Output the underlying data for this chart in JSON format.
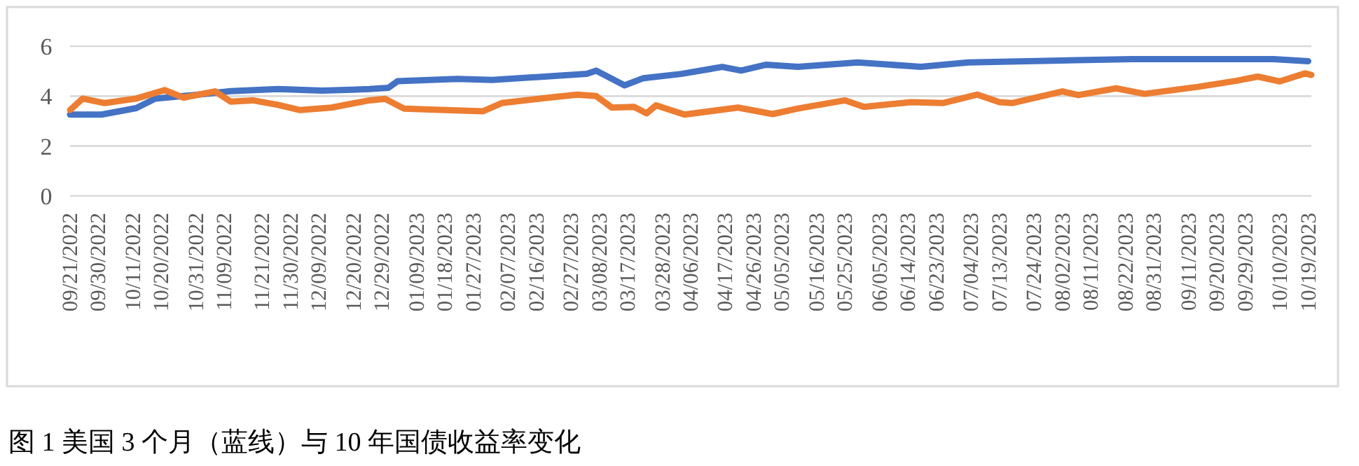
{
  "chart_data": {
    "type": "line",
    "grid": "y",
    "xlim": [
      "2022-09-21",
      "2023-10-20"
    ],
    "ylim": [
      0,
      6
    ],
    "yticks": [
      0,
      2,
      4,
      6
    ],
    "xticks": [
      {
        "value": "2022-09-21",
        "label": "09/21/2022"
      },
      {
        "value": "2022-09-30",
        "label": "09/30/2022"
      },
      {
        "value": "2022-10-11",
        "label": "10/11/2022"
      },
      {
        "value": "2022-10-20",
        "label": "10/20/2022"
      },
      {
        "value": "2022-10-31",
        "label": "10/31/2022"
      },
      {
        "value": "2022-11-09",
        "label": "11/09/2022"
      },
      {
        "value": "2022-11-21",
        "label": "11/21/2022"
      },
      {
        "value": "2022-11-30",
        "label": "11/30/2022"
      },
      {
        "value": "2022-12-09",
        "label": "12/09/2022"
      },
      {
        "value": "2022-12-20",
        "label": "12/20/2022"
      },
      {
        "value": "2022-12-29",
        "label": "12/29/2022"
      },
      {
        "value": "2023-01-09",
        "label": "01/09/2023"
      },
      {
        "value": "2023-01-18",
        "label": "01/18/2023"
      },
      {
        "value": "2023-01-27",
        "label": "01/27/2023"
      },
      {
        "value": "2023-02-07",
        "label": "02/07/2023"
      },
      {
        "value": "2023-02-16",
        "label": "02/16/2023"
      },
      {
        "value": "2023-02-27",
        "label": "02/27/2023"
      },
      {
        "value": "2023-03-08",
        "label": "03/08/2023"
      },
      {
        "value": "2023-03-17",
        "label": "03/17/2023"
      },
      {
        "value": "2023-03-28",
        "label": "03/28/2023"
      },
      {
        "value": "2023-04-06",
        "label": "04/06/2023"
      },
      {
        "value": "2023-04-17",
        "label": "04/17/2023"
      },
      {
        "value": "2023-04-26",
        "label": "04/26/2023"
      },
      {
        "value": "2023-05-05",
        "label": "05/05/2023"
      },
      {
        "value": "2023-05-16",
        "label": "05/16/2023"
      },
      {
        "value": "2023-05-25",
        "label": "05/25/2023"
      },
      {
        "value": "2023-06-05",
        "label": "06/05/2023"
      },
      {
        "value": "2023-06-14",
        "label": "06/14/2023"
      },
      {
        "value": "2023-06-23",
        "label": "06/23/2023"
      },
      {
        "value": "2023-07-04",
        "label": "07/04/2023"
      },
      {
        "value": "2023-07-13",
        "label": "07/13/2023"
      },
      {
        "value": "2023-07-24",
        "label": "07/24/2023"
      },
      {
        "value": "2023-08-02",
        "label": "08/02/2023"
      },
      {
        "value": "2023-08-11",
        "label": "08/11/2023"
      },
      {
        "value": "2023-08-22",
        "label": "08/22/2023"
      },
      {
        "value": "2023-08-31",
        "label": "08/31/2023"
      },
      {
        "value": "2023-09-11",
        "label": "09/11/2023"
      },
      {
        "value": "2023-09-20",
        "label": "09/20/2023"
      },
      {
        "value": "2023-09-29",
        "label": "09/29/2023"
      },
      {
        "value": "2023-10-10",
        "label": "10/10/2023"
      },
      {
        "value": "2023-10-19",
        "label": "10/19/2023"
      }
    ],
    "series": [
      {
        "color": "#4472c4",
        "x": [
          "2022-09-21",
          "2022-10-01",
          "2022-10-12",
          "2022-10-18",
          "2022-10-30",
          "2022-11-11",
          "2022-11-26",
          "2022-12-10",
          "2022-12-25",
          "2022-12-31",
          "2023-01-03",
          "2023-01-22",
          "2023-02-02",
          "2023-03-04",
          "2023-03-07",
          "2023-03-16",
          "2023-03-22",
          "2023-04-03",
          "2023-04-16",
          "2023-04-22",
          "2023-04-30",
          "2023-05-10",
          "2023-05-29",
          "2023-06-15",
          "2023-06-18",
          "2023-07-03",
          "2023-08-24",
          "2023-10-08",
          "2023-10-19"
        ],
        "values": [
          3.26,
          3.26,
          3.52,
          3.9,
          4.04,
          4.2,
          4.28,
          4.22,
          4.28,
          4.33,
          4.6,
          4.69,
          4.65,
          4.89,
          5.02,
          4.43,
          4.72,
          4.89,
          5.17,
          5.02,
          5.26,
          5.17,
          5.35,
          5.2,
          5.17,
          5.35,
          5.48,
          5.48,
          5.4
        ]
      },
      {
        "color": "#ed7d31",
        "x": [
          "2022-09-21",
          "2022-09-25",
          "2022-10-02",
          "2022-10-12",
          "2022-10-21",
          "2022-10-27",
          "2022-11-06",
          "2022-11-11",
          "2022-11-18",
          "2022-11-26",
          "2022-12-03",
          "2022-12-13",
          "2022-12-25",
          "2022-12-30",
          "2023-01-05",
          "2023-01-18",
          "2023-01-30",
          "2023-02-05",
          "2023-02-20",
          "2023-03-01",
          "2023-03-07",
          "2023-03-12",
          "2023-03-19",
          "2023-03-23",
          "2023-03-26",
          "2023-04-04",
          "2023-04-21",
          "2023-05-02",
          "2023-05-10",
          "2023-05-25",
          "2023-05-31",
          "2023-06-15",
          "2023-06-25",
          "2023-07-06",
          "2023-07-13",
          "2023-07-17",
          "2023-08-02",
          "2023-08-07",
          "2023-08-19",
          "2023-08-28",
          "2023-09-14",
          "2023-09-26",
          "2023-10-03",
          "2023-10-10",
          "2023-10-18",
          "2023-10-20"
        ],
        "values": [
          3.44,
          3.9,
          3.72,
          3.9,
          4.24,
          3.94,
          4.19,
          3.78,
          3.83,
          3.65,
          3.44,
          3.54,
          3.83,
          3.89,
          3.5,
          3.44,
          3.39,
          3.72,
          3.94,
          4.06,
          4.0,
          3.54,
          3.57,
          3.31,
          3.63,
          3.26,
          3.54,
          3.28,
          3.5,
          3.83,
          3.57,
          3.76,
          3.72,
          4.06,
          3.76,
          3.72,
          4.19,
          4.04,
          4.31,
          4.09,
          4.37,
          4.61,
          4.78,
          4.59,
          4.91,
          4.85
        ]
      }
    ],
    "annotations": [
      "图 1 美国 3 个月（蓝线）与 10 年国债收益率变化"
    ]
  }
}
